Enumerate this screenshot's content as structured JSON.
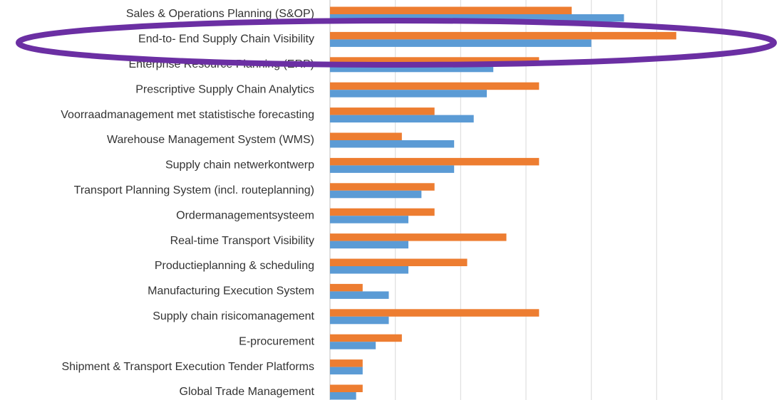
{
  "chart_data": {
    "type": "barh",
    "categories": [
      "Sales & Operations Planning (S&OP)",
      "End-to- End Supply Chain Visibility",
      "Enterprise Resource Planning (ERP)",
      "Prescriptive Supply Chain Analytics",
      "Voorraadmanagement met statistische forecasting",
      "Warehouse Management System (WMS)",
      "Supply chain netwerkontwerp",
      "Transport Planning System (incl. routeplanning)",
      "Ordermanagementsysteem",
      "Real-time Transport Visibility",
      "Productieplanning & scheduling",
      "Manufacturing Execution System",
      "Supply chain risicomanagement",
      "E-procurement",
      "Shipment & Transport Execution Tender Platforms",
      "Global Trade Management"
    ],
    "series": [
      {
        "color": "#ed7d31",
        "values": [
          37,
          53,
          32,
          32,
          16,
          11,
          32,
          16,
          16,
          27,
          21,
          5,
          32,
          11,
          5,
          5
        ]
      },
      {
        "color": "#5b9bd5",
        "values": [
          45,
          40,
          25,
          24,
          22,
          19,
          19,
          14,
          12,
          12,
          12,
          9,
          9,
          7,
          5,
          4
        ]
      }
    ],
    "xlim": [
      0,
      60
    ],
    "xticks": [
      0,
      10,
      20,
      30,
      40,
      50,
      60
    ],
    "grid": true
  }
}
